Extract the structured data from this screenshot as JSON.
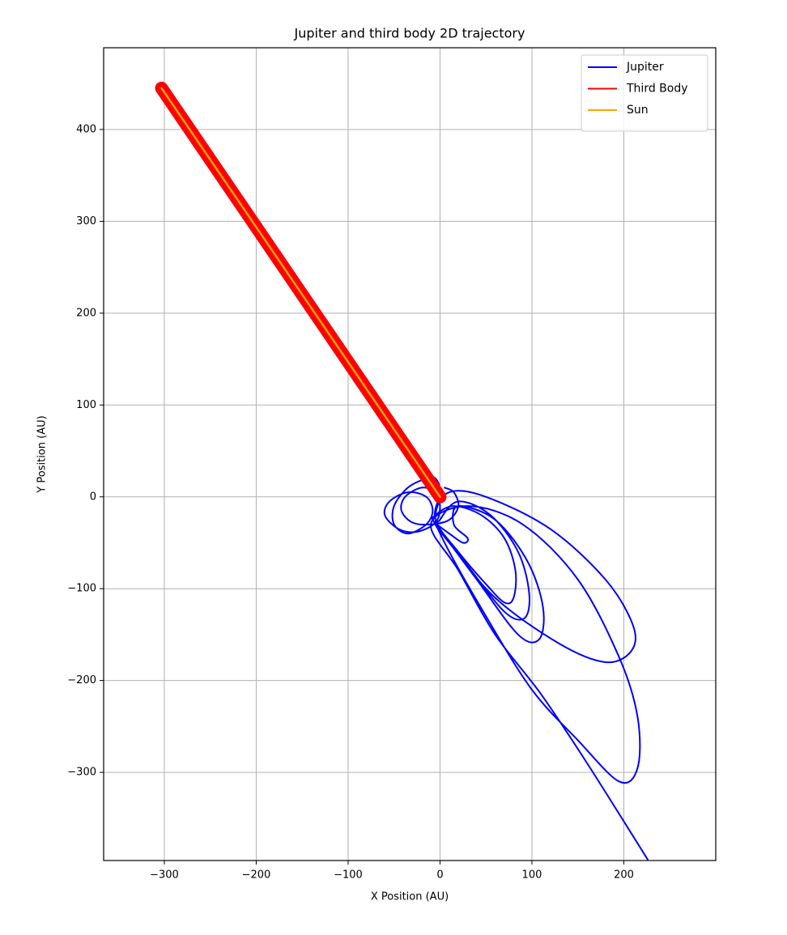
{
  "chart_data": {
    "type": "line",
    "title": "Jupiter and third body 2D trajectory",
    "x_label": "X Position (AU)",
    "y_label": "Y Position (AU)",
    "xlim": [
      -366,
      300
    ],
    "ylim": [
      -396,
      489
    ],
    "xticks": [
      {
        "value": -300,
        "label": "−300"
      },
      {
        "value": -200,
        "label": "−200"
      },
      {
        "value": -100,
        "label": "−100"
      },
      0,
      100,
      200
    ],
    "yticks": [
      {
        "value": -300,
        "label": "−300"
      },
      {
        "value": -200,
        "label": "−200"
      },
      {
        "value": -100,
        "label": "−100"
      },
      0,
      100,
      200,
      300,
      400
    ],
    "grid": true,
    "legend_position": "upper right",
    "series": [
      {
        "name": "Jupiter",
        "color": "#0000ff",
        "x": [
          5,
          15,
          20,
          10,
          -10,
          -30,
          -42,
          -38,
          -20,
          -5,
          0,
          -5,
          -25,
          -45,
          -60,
          -55,
          -35,
          -15,
          -8,
          -15,
          -35,
          -50,
          -50,
          -35,
          -15,
          -5,
          0,
          -5,
          20,
          50,
          70,
          80,
          82,
          70,
          45,
          15,
          -5,
          -5,
          30,
          70,
          92,
          97,
          85,
          55,
          20,
          0,
          0,
          40,
          85,
          108,
          112,
          95,
          60,
          20,
          15,
          30,
          25,
          10,
          -5,
          10,
          60,
          130,
          180,
          208,
          210,
          180,
          120,
          50,
          10,
          -5,
          5,
          50,
          100,
          150,
          195,
          215,
          215,
          195,
          150,
          90,
          30,
          -10,
          20,
          60,
          110,
          160,
          226
        ],
        "y": [
          10,
          5,
          -10,
          -25,
          -30,
          -28,
          -15,
          0,
          10,
          5,
          -10,
          -28,
          -38,
          -35,
          -20,
          -5,
          5,
          0,
          -15,
          -30,
          -40,
          -30,
          -10,
          10,
          20,
          20,
          5,
          -25,
          -60,
          -95,
          -115,
          -110,
          -80,
          -45,
          -20,
          -10,
          -20,
          -30,
          -75,
          -125,
          -132,
          -105,
          -60,
          -20,
          -5,
          -25,
          -35,
          -90,
          -150,
          -155,
          -120,
          -70,
          -25,
          -10,
          -30,
          -45,
          -50,
          -40,
          -30,
          -50,
          -110,
          -160,
          -180,
          -168,
          -140,
          -90,
          -35,
          0,
          5,
          -20,
          -50,
          -130,
          -210,
          -265,
          -310,
          -295,
          -240,
          -175,
          -90,
          -30,
          -10,
          -30,
          -80,
          -150,
          -215,
          -290,
          -395
        ]
      },
      {
        "name": "Third Body",
        "color": "#ff0000",
        "x": [
          0,
          -303
        ],
        "y": [
          0,
          445
        ]
      },
      {
        "name": "Sun",
        "color": "#ffa500",
        "x": [
          0,
          -303
        ],
        "y": [
          0,
          445
        ]
      }
    ]
  }
}
